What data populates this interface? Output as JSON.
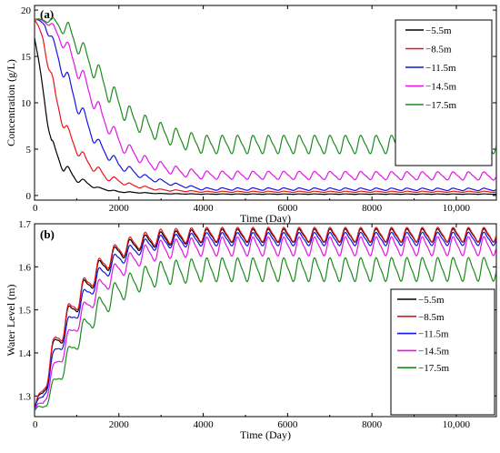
{
  "chart_data": [
    {
      "type": "line",
      "panel_label": "(a)",
      "xlabel": "Time (Day)",
      "ylabel": "Concentration (g/L)",
      "xlim": [
        0,
        10950
      ],
      "ylim": [
        -0.5,
        20.5
      ],
      "x_ticks": [
        0,
        2000,
        4000,
        6000,
        8000,
        10000
      ],
      "x_tick_labels": [
        "0",
        "2000",
        "4000",
        "6000",
        "8000",
        "10,000"
      ],
      "y_ticks": [
        0,
        5,
        10,
        15,
        20
      ],
      "y_tick_labels": [
        "0",
        "5",
        "10",
        "15",
        "20"
      ],
      "legend_position": "top-right",
      "grid": false,
      "oscillation_period_days": 365,
      "series": [
        {
          "name": "−5.5m",
          "color": "#000000",
          "t": [
            0,
            150,
            400,
            700,
            1000,
            1500,
            2000,
            3000,
            4000,
            10950
          ],
          "y": [
            17,
            13,
            5.5,
            3.0,
            1.8,
            0.8,
            0.4,
            0.2,
            0.15,
            0.15
          ],
          "amplitude": [
            0,
            0.3,
            0.6,
            0.5,
            0.3,
            0.1,
            0.05,
            0.02,
            0.02,
            0.02
          ]
        },
        {
          "name": "−8.5m",
          "color": "#e8141a",
          "t": [
            0,
            200,
            500,
            800,
            1200,
            1700,
            2300,
            3000,
            4000,
            10950
          ],
          "y": [
            19,
            17,
            10.5,
            6.5,
            3.8,
            2.0,
            1.1,
            0.6,
            0.4,
            0.4
          ],
          "amplitude": [
            0,
            0.4,
            0.8,
            0.7,
            0.5,
            0.3,
            0.15,
            0.08,
            0.06,
            0.06
          ]
        },
        {
          "name": "−11.5m",
          "color": "#1414e6",
          "t": [
            0,
            250,
            600,
            1000,
            1500,
            2000,
            2600,
            3300,
            4000,
            10950
          ],
          "y": [
            19,
            18.5,
            14.5,
            10,
            5.5,
            3.3,
            2.0,
            1.2,
            0.7,
            0.65
          ],
          "amplitude": [
            0,
            0.3,
            0.8,
            0.8,
            0.6,
            0.4,
            0.25,
            0.15,
            0.12,
            0.12
          ]
        },
        {
          "name": "−14.5m",
          "color": "#e414e4",
          "t": [
            0,
            300,
            700,
            1100,
            1600,
            2100,
            2700,
            3400,
            4000,
            10950
          ],
          "y": [
            19,
            18.8,
            16.5,
            13,
            8.5,
            5.3,
            3.5,
            2.6,
            2.2,
            2.1
          ],
          "amplitude": [
            0,
            0.3,
            0.7,
            0.9,
            0.8,
            0.6,
            0.5,
            0.45,
            0.4,
            0.4
          ]
        },
        {
          "name": "−17.5m",
          "color": "#1b8c1b",
          "t": [
            0,
            400,
            800,
            1300,
            1800,
            2300,
            2900,
            3500,
            4000,
            10950
          ],
          "y": [
            19,
            18.9,
            17.8,
            14.5,
            11,
            8.3,
            7.0,
            6.0,
            5.5,
            5.5
          ],
          "amplitude": [
            0,
            0.3,
            0.8,
            1.0,
            1.1,
            1.0,
            0.95,
            0.9,
            0.9,
            0.9
          ]
        }
      ]
    },
    {
      "type": "line",
      "panel_label": "(b)",
      "xlabel": "Time (Day)",
      "ylabel": "Water Level (m)",
      "xlim": [
        0,
        10950
      ],
      "ylim": [
        1.252,
        1.7
      ],
      "x_ticks": [
        0,
        2000,
        4000,
        6000,
        8000,
        10000
      ],
      "x_tick_labels": [
        "0",
        "2000",
        "4000",
        "6000",
        "8000",
        "10,000"
      ],
      "y_ticks": [
        1.3,
        1.4,
        1.5,
        1.6,
        1.7
      ],
      "y_tick_labels": [
        "1.3",
        "1.4",
        "1.5",
        "1.6",
        "1.7"
      ],
      "legend_position": "right",
      "grid": false,
      "oscillation_period_days": 365,
      "series": [
        {
          "name": "−5.5m",
          "color": "#000000",
          "t": [
            0,
            200,
            500,
            1000,
            1500,
            2000,
            2500,
            3000,
            4000,
            10950
          ],
          "y": [
            1.27,
            1.31,
            1.42,
            1.52,
            1.59,
            1.635,
            1.655,
            1.665,
            1.672,
            1.673
          ],
          "amplitude": [
            0.005,
            0.02,
            0.025,
            0.025,
            0.02,
            0.018,
            0.015,
            0.015,
            0.014,
            0.014
          ]
        },
        {
          "name": "−8.5m",
          "color": "#e8141a",
          "t": [
            0,
            200,
            500,
            1000,
            1500,
            2000,
            2500,
            3000,
            4000,
            10950
          ],
          "y": [
            1.27,
            1.315,
            1.425,
            1.525,
            1.595,
            1.64,
            1.66,
            1.67,
            1.675,
            1.675
          ],
          "amplitude": [
            0.005,
            0.02,
            0.025,
            0.025,
            0.02,
            0.018,
            0.016,
            0.016,
            0.015,
            0.015
          ]
        },
        {
          "name": "−11.5m",
          "color": "#1414e6",
          "t": [
            0,
            200,
            500,
            1000,
            1500,
            2000,
            2500,
            3000,
            4000,
            10950
          ],
          "y": [
            1.27,
            1.3,
            1.4,
            1.5,
            1.575,
            1.62,
            1.645,
            1.658,
            1.664,
            1.665
          ],
          "amplitude": [
            0.005,
            0.015,
            0.02,
            0.02,
            0.018,
            0.016,
            0.015,
            0.014,
            0.014,
            0.014
          ]
        },
        {
          "name": "−14.5m",
          "color": "#e414e4",
          "t": [
            0,
            200,
            500,
            1000,
            1500,
            2000,
            2500,
            3000,
            4000,
            10950
          ],
          "y": [
            1.265,
            1.285,
            1.37,
            1.47,
            1.545,
            1.595,
            1.625,
            1.64,
            1.647,
            1.648
          ],
          "amplitude": [
            0.005,
            0.012,
            0.018,
            0.02,
            0.02,
            0.02,
            0.02,
            0.02,
            0.02,
            0.02
          ]
        },
        {
          "name": "−17.5m",
          "color": "#1b8c1b",
          "t": [
            0,
            200,
            500,
            1000,
            1500,
            2000,
            2500,
            3000,
            4000,
            10950
          ],
          "y": [
            1.265,
            1.275,
            1.33,
            1.43,
            1.5,
            1.545,
            1.57,
            1.585,
            1.593,
            1.594
          ],
          "amplitude": [
            0.003,
            0.01,
            0.018,
            0.022,
            0.024,
            0.025,
            0.025,
            0.025,
            0.025,
            0.025
          ]
        }
      ]
    }
  ]
}
